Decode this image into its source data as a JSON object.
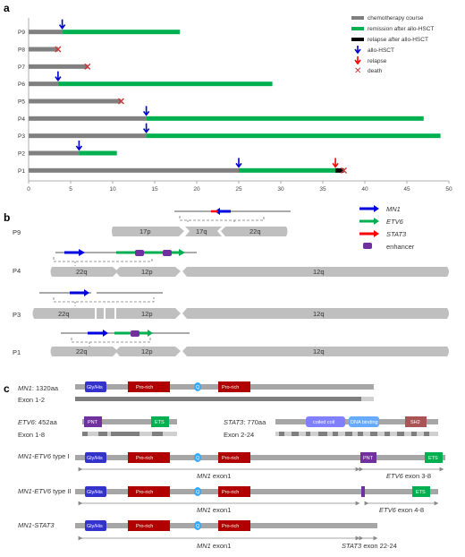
{
  "panel_labels": {
    "a": "a",
    "b": "b",
    "c": "c"
  },
  "colors": {
    "chemo": "#808080",
    "remission": "#00b050",
    "relapse_after": "#000000",
    "allo": "#0000cc",
    "relapse": "#ff0000",
    "death": "#cc3333",
    "MN1": "#0000dd",
    "ETV6": "#00b050",
    "STAT3": "#ff0000",
    "enhancer": "#7030a0",
    "chromosome": "#bfbfbf",
    "GlyHis": "#3333cc",
    "ProRich": "#b00000",
    "Q": "#33aaff",
    "PNT": "#7030a0",
    "ETS": "#00b050",
    "CoiledCoil": "#8080ff",
    "DNABinding": "#66aaff",
    "SH2": "#aa5555"
  },
  "panel_a": {
    "legend": [
      "chemotherapy course",
      "remission after allo-HSCT",
      "relapse after allo-HSCT",
      "allo-HSCT",
      "relapse",
      "death"
    ],
    "chart_data": {
      "type": "bar",
      "orientation": "horizontal-stacked",
      "categories": [
        "P9",
        "P8",
        "P7",
        "P6",
        "P5",
        "P4",
        "P3",
        "P2",
        "P1"
      ],
      "xlim": [
        0,
        50
      ],
      "xticks": [
        "0",
        "5",
        "10",
        "15",
        "20",
        "25",
        "30",
        "35",
        "40",
        "45",
        "50"
      ],
      "series": [
        {
          "name": "chemotherapy course",
          "values": [
            4,
            3.5,
            7,
            3.5,
            11,
            14,
            14,
            6,
            25
          ]
        },
        {
          "name": "remission after allo-HSCT",
          "values": [
            14,
            0,
            0,
            25.5,
            0,
            33,
            35,
            4.5,
            11.5
          ]
        },
        {
          "name": "relapse after allo-HSCT",
          "values": [
            0,
            0,
            0,
            0,
            0,
            0,
            0,
            0,
            1
          ]
        }
      ],
      "allo_hsct": [
        4,
        null,
        null,
        3.5,
        null,
        14,
        14,
        6,
        25
      ],
      "relapse": [
        null,
        null,
        null,
        null,
        null,
        null,
        null,
        null,
        36.5
      ],
      "death": [
        null,
        3.5,
        7,
        null,
        11,
        null,
        null,
        null,
        37.5
      ]
    }
  },
  "panel_b": {
    "legend": [
      "MN1",
      "ETV6",
      "STAT3",
      "enhancer"
    ],
    "rows": [
      {
        "patient": "P9",
        "segments": [
          "17p",
          "17q",
          "22q"
        ]
      },
      {
        "patient": "P4",
        "segments": [
          "22q",
          "12p",
          "12q"
        ]
      },
      {
        "patient": "P3",
        "segments": [
          "22q",
          "12p",
          "12q"
        ]
      },
      {
        "patient": "P1",
        "segments": [
          "22q",
          "12p",
          "12q"
        ]
      }
    ]
  },
  "panel_c": {
    "mn1_title": "MN1",
    "mn1_len": ": 1320aa",
    "mn1_exon": "Exon 1-2",
    "etv6_title": "ETV6",
    "etv6_len": ": 452aa",
    "etv6_exon": "Exon 1-8",
    "stat3_title": "STAT3",
    "stat3_len": ": 770aa",
    "stat3_exon": "Exon 2-24",
    "fusion1_title": "MN1-ETV6",
    "fusion1_suffix": " type I",
    "fusion2_title": "MN1-ETV6",
    "fusion2_suffix": " type II",
    "fusion3_title": "MN1-STAT3",
    "domains": {
      "gly": "Gly/His",
      "pro": "Pro-rich",
      "q": "Q",
      "pnt": "PNT",
      "ets": "ETS",
      "coiled": "coiled coil",
      "dna": "DNA binding",
      "sh2": "SH2"
    },
    "f1_exon_a": "MN1",
    "f1_exon_a_suffix": " exon1",
    "f1_exon_b": "ETV6",
    "f1_exon_b_suffix": " exon 3-8",
    "f2_exon_a": "MN1",
    "f2_exon_a_suffix": " exon1",
    "f2_exon_b": "ETV6",
    "f2_exon_b_suffix": " exon 4-8",
    "f3_exon_a": "MN1",
    "f3_exon_a_suffix": " exon1",
    "f3_exon_b": "STAT3",
    "f3_exon_b_suffix": " exon 22-24"
  }
}
